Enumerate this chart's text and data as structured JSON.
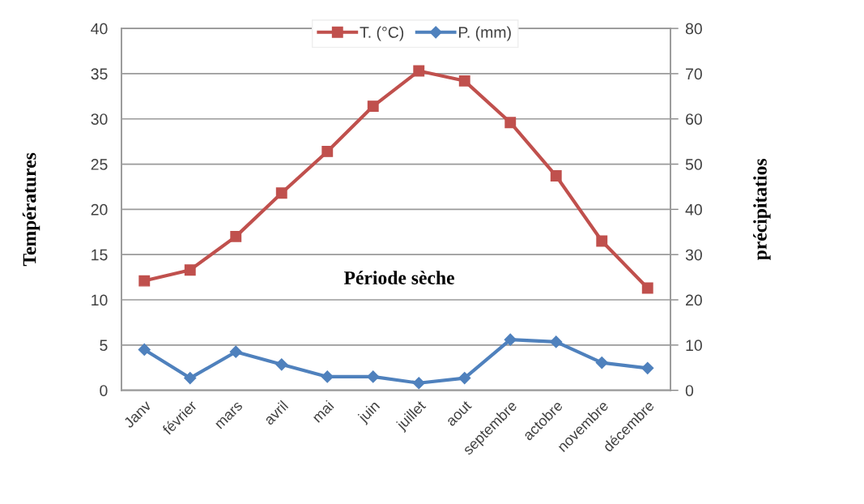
{
  "chart_data": {
    "type": "line",
    "categories": [
      "Janv",
      "février",
      "mars",
      "avril",
      "mai",
      "juin",
      "juillet",
      "aout",
      "septembre",
      "actobre",
      "novembre",
      "décembre"
    ],
    "series": [
      {
        "name": "T. (°C)",
        "color": "#c0504d",
        "marker": "square",
        "values": [
          12.1,
          13.3,
          17.0,
          21.8,
          26.4,
          31.4,
          35.3,
          34.2,
          29.6,
          23.7,
          16.5,
          11.3
        ]
      },
      {
        "name": "P. (mm)",
        "color": "#4f81bd",
        "marker": "diamond",
        "axis": "y2",
        "values": [
          9.0,
          2.7,
          8.5,
          5.7,
          3.0,
          3.0,
          1.6,
          2.7,
          11.2,
          10.7,
          6.1,
          4.9
        ]
      }
    ],
    "ylabel": "Températures",
    "y2label": "précipitatios",
    "ylim": [
      0,
      40
    ],
    "yticks": [
      0,
      5,
      10,
      15,
      20,
      25,
      30,
      35,
      40
    ],
    "y2lim": [
      0,
      80
    ],
    "y2ticks": [
      0,
      10,
      20,
      30,
      40,
      50,
      60,
      70,
      80
    ],
    "annotations": [
      "Période sèche"
    ],
    "grid": "y",
    "legend": "top",
    "line_style": "solid"
  }
}
